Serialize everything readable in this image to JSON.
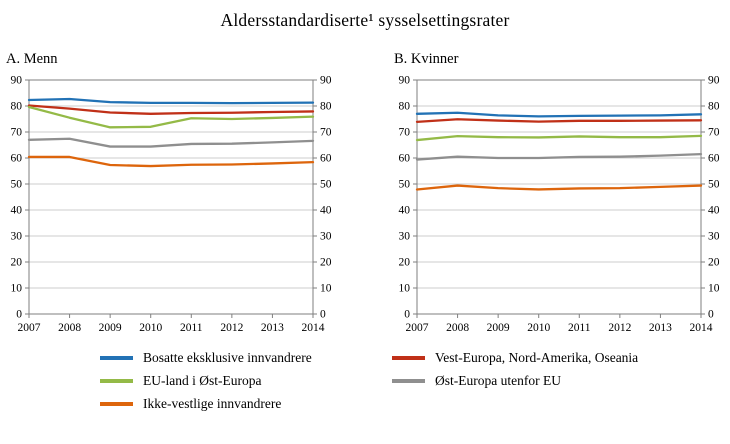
{
  "title": "Aldersstandardiserte¹ sysselsettingsrater",
  "style": {
    "background": "#ffffff",
    "grid_color": "#cccccc",
    "axis_color": "#7f7f7f",
    "text_color": "#000000"
  },
  "chart_data": [
    {
      "type": "line",
      "title": "A. Menn",
      "x": [
        "2007",
        "2008",
        "2009",
        "2010",
        "2011",
        "2012",
        "2013",
        "2014"
      ],
      "ylim": [
        0,
        90
      ],
      "yticks": [
        0,
        10,
        20,
        30,
        40,
        50,
        60,
        70,
        80,
        90
      ],
      "grid": true,
      "legend_position": "bottom",
      "series": [
        {
          "name": "Bosatte eksklusive innvandrere",
          "color": "#2272b5",
          "values": [
            82.3,
            82.7,
            81.5,
            81.2,
            81.2,
            81.1,
            81.2,
            81.3
          ]
        },
        {
          "name": "Vest-Europa, Nord-Amerika, Oseania",
          "color": "#c03018",
          "values": [
            80.2,
            79.0,
            77.5,
            77.0,
            77.3,
            77.4,
            77.7,
            77.9
          ]
        },
        {
          "name": "EU-land i Øst-Europa",
          "color": "#94ba47",
          "values": [
            79.6,
            75.5,
            71.8,
            72.0,
            75.3,
            75.0,
            75.4,
            75.9
          ]
        },
        {
          "name": "Øst-Europa utenfor EU",
          "color": "#8f8f8f",
          "values": [
            67.0,
            67.4,
            64.4,
            64.4,
            65.4,
            65.5,
            66.0,
            66.6
          ]
        },
        {
          "name": "Ikke-vestlige innvandrere",
          "color": "#dd650c",
          "values": [
            60.4,
            60.4,
            57.3,
            56.9,
            57.4,
            57.5,
            57.9,
            58.4
          ]
        }
      ]
    },
    {
      "type": "line",
      "title": "B. Kvinner",
      "x": [
        "2007",
        "2008",
        "2009",
        "2010",
        "2011",
        "2012",
        "2013",
        "2014"
      ],
      "ylim": [
        0,
        90
      ],
      "yticks": [
        0,
        10,
        20,
        30,
        40,
        50,
        60,
        70,
        80,
        90
      ],
      "grid": true,
      "legend_position": "bottom",
      "series": [
        {
          "name": "Bosatte eksklusive innvandrere",
          "color": "#2272b5",
          "values": [
            77.0,
            77.4,
            76.4,
            76.0,
            76.2,
            76.3,
            76.4,
            76.8
          ]
        },
        {
          "name": "Vest-Europa, Nord-Amerika, Oseania",
          "color": "#c03018",
          "values": [
            73.9,
            74.9,
            74.4,
            74.0,
            74.3,
            74.3,
            74.4,
            74.5
          ]
        },
        {
          "name": "EU-land i Øst-Europa",
          "color": "#94ba47",
          "values": [
            66.9,
            68.4,
            68.0,
            67.9,
            68.3,
            68.0,
            68.0,
            68.5
          ]
        },
        {
          "name": "Øst-Europa utenfor EU",
          "color": "#8f8f8f",
          "values": [
            59.4,
            60.5,
            60.0,
            60.0,
            60.4,
            60.5,
            60.9,
            61.5
          ]
        },
        {
          "name": "Ikke-vestlige innvandrere",
          "color": "#dd650c",
          "values": [
            47.9,
            49.4,
            48.4,
            47.9,
            48.3,
            48.4,
            48.9,
            49.4
          ]
        }
      ]
    }
  ],
  "legend": {
    "left": [
      {
        "label": "Bosatte eksklusive innvandrere",
        "color": "#2272b5"
      },
      {
        "label": "EU-land i Øst-Europa",
        "color": "#94ba47"
      },
      {
        "label": "Ikke-vestlige innvandrere",
        "color": "#dd650c"
      }
    ],
    "right": [
      {
        "label": "Vest-Europa, Nord-Amerika, Oseania",
        "color": "#c03018"
      },
      {
        "label": "Øst-Europa utenfor EU",
        "color": "#8f8f8f"
      }
    ]
  }
}
